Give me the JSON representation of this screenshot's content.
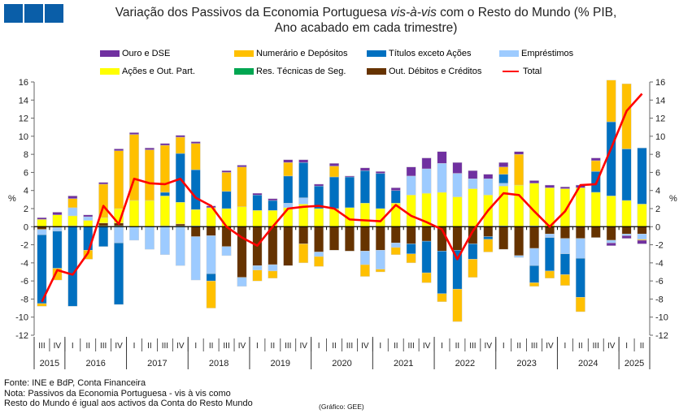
{
  "header": {
    "title_part1": "Variação dos Passivos da Economia Portuguesa ",
    "title_italic": "vis-à-vis",
    "title_part2": " com o Resto do Mundo (% PIB,",
    "title_line2": "Ano acabado em cada trimestre)"
  },
  "footer": {
    "source": "Fonte: INE e BdP, Conta Financeira",
    "note_line1": "Nota: Passivos da Economia Portuguesa - vis à vis como",
    "note_line2": "Resto do Mundo é igual aos activos da Conta do Resto Mundo",
    "credit": "(Gráfico: GEE)"
  },
  "chart_data": {
    "type": "bar",
    "stacked": true,
    "title": "Variação dos Passivos da Economia Portuguesa vis-à-vis com o Resto do Mundo (% PIB, Ano acabado em cada trimestre)",
    "ylabel": "%",
    "ylim": [
      -12,
      16
    ],
    "yticks": [
      -12,
      -10,
      -8,
      -6,
      -4,
      -2,
      0,
      2,
      4,
      6,
      8,
      10,
      12,
      14,
      16
    ],
    "legend_position": "top",
    "quarters": [
      "III",
      "IV",
      "I",
      "II",
      "III",
      "IV",
      "I",
      "II",
      "III",
      "IV",
      "I",
      "II",
      "III",
      "IV",
      "I",
      "II",
      "III",
      "IV",
      "I",
      "II",
      "III",
      "IV",
      "I",
      "II",
      "III",
      "IV",
      "I",
      "II",
      "III",
      "IV",
      "I",
      "II",
      "III",
      "IV",
      "I",
      "II",
      "III",
      "IV",
      "I",
      "II"
    ],
    "years": [
      {
        "label": "2015",
        "count": 2
      },
      {
        "label": "2016",
        "count": 4
      },
      {
        "label": "2017",
        "count": 4
      },
      {
        "label": "2018",
        "count": 4
      },
      {
        "label": "2019",
        "count": 4
      },
      {
        "label": "2020",
        "count": 4
      },
      {
        "label": "2021",
        "count": 4
      },
      {
        "label": "2022",
        "count": 4
      },
      {
        "label": "2023",
        "count": 4
      },
      {
        "label": "2024",
        "count": 4
      },
      {
        "label": "2025",
        "count": 2
      }
    ],
    "series": [
      {
        "name": "Ouro e DSE",
        "color": "#7030a0",
        "values": [
          0.2,
          0.3,
          0.3,
          0.2,
          0.2,
          0.2,
          0.2,
          0.2,
          0.2,
          0.2,
          0.2,
          0.2,
          0.2,
          0.2,
          0.2,
          0.2,
          0.3,
          0.3,
          0.2,
          0.3,
          0.1,
          0.3,
          0.2,
          0.3,
          1.0,
          1.2,
          1.3,
          1.2,
          0.9,
          0.5,
          0.5,
          0.3,
          0.3,
          0.3,
          0.2,
          0.3,
          0.3,
          -0.3,
          -0.3,
          -0.4
        ]
      },
      {
        "name": "Numerário e Depósitos",
        "color": "#ffc000",
        "values": [
          -0.3,
          -1.3,
          1.0,
          -1.0,
          3.7,
          6.4,
          7.3,
          5.6,
          5.2,
          1.8,
          2.9,
          -3.0,
          2.1,
          4.4,
          -1.2,
          -0.8,
          1.5,
          -2.1,
          -1.1,
          1.2,
          0.0,
          -1.3,
          -0.3,
          -0.8,
          -1.0,
          -1.1,
          -0.9,
          -3.6,
          -2.0,
          -1.4,
          0.8,
          3.4,
          -0.4,
          -0.8,
          -1.2,
          -1.6,
          1.2,
          4.6,
          7.2,
          -0.1
        ]
      },
      {
        "name": "Títulos exceto Ações",
        "color": "#0070c0",
        "values": [
          -7.6,
          -4.1,
          -8.8,
          -2.6,
          -2.2,
          -6.8,
          0.0,
          0.0,
          0.4,
          5.4,
          4.4,
          -0.8,
          1.9,
          0.0,
          1.7,
          1.1,
          3.0,
          3.9,
          2.5,
          3.5,
          3.4,
          3.6,
          3.9,
          1.4,
          -1.1,
          -3.5,
          -4.7,
          -4.3,
          -1.7,
          -0.3,
          1.0,
          0.0,
          -1.9,
          -3.7,
          -2.3,
          -4.3,
          2.3,
          8.2,
          5.7,
          6.2
        ]
      },
      {
        "name": "Empréstimos",
        "color": "#9dcbff",
        "values": [
          -0.6,
          -0.4,
          0.9,
          0.4,
          0.0,
          -1.8,
          -1.5,
          -2.5,
          -3.1,
          -4.3,
          -4.8,
          -4.2,
          -1.0,
          -1.0,
          -0.5,
          -0.7,
          0.5,
          0.7,
          -0.5,
          0.0,
          0.0,
          -1.5,
          -2.1,
          -0.5,
          2.1,
          2.7,
          3.2,
          2.6,
          1.1,
          1.8,
          0.3,
          -0.2,
          -1.9,
          -0.4,
          -1.7,
          -2.2,
          0.0,
          -0.3,
          -0.2,
          -0.6
        ]
      },
      {
        "name": "Ações e Out. Part.",
        "color": "#ffff00",
        "values": [
          0.8,
          1.3,
          1.1,
          0.7,
          0.6,
          1.6,
          2.9,
          2.9,
          3.3,
          2.4,
          1.8,
          2.1,
          2.0,
          2.2,
          1.8,
          1.8,
          2.1,
          2.5,
          2.0,
          2.0,
          2.1,
          2.6,
          2.0,
          2.6,
          3.5,
          3.7,
          3.8,
          3.3,
          4.2,
          3.5,
          4.4,
          4.6,
          4.7,
          4.3,
          4.2,
          4.3,
          3.8,
          3.4,
          2.9,
          2.5
        ]
      },
      {
        "name": "Res. Técnicas de Seg.",
        "color": "#00a651",
        "values": [
          0.0,
          0.0,
          0.1,
          0.0,
          0.1,
          0.1,
          0.0,
          0.0,
          0.1,
          0.1,
          0.1,
          0.0,
          0.0,
          0.0,
          0.0,
          0.0,
          0.0,
          0.0,
          0.0,
          0.0,
          0.0,
          0.0,
          0.0,
          0.0,
          0.0,
          0.0,
          0.0,
          0.0,
          0.0,
          0.0,
          0.1,
          0.0,
          0.1,
          0.0,
          0.0,
          0.0,
          0.0,
          0.0,
          0.0,
          0.0
        ]
      },
      {
        "name": "Out. Débitos e Créditos",
        "color": "#663300",
        "values": [
          -0.3,
          -0.1,
          0.0,
          0.0,
          0.3,
          0.3,
          0.0,
          0.0,
          0.0,
          0.2,
          -1.1,
          -1.0,
          -2.2,
          -5.6,
          -4.3,
          -4.2,
          -4.3,
          -1.9,
          -2.8,
          -2.6,
          -2.7,
          -2.7,
          -2.6,
          -1.8,
          -1.9,
          -1.6,
          -2.7,
          -2.6,
          -1.9,
          -1.1,
          -2.5,
          -3.2,
          -2.4,
          -0.8,
          -1.3,
          -1.3,
          -1.2,
          -1.5,
          -0.8,
          -0.8
        ]
      },
      {
        "name": "Total",
        "color": "#ff0000",
        "type": "line",
        "values": [
          -8.3,
          -4.8,
          -5.3,
          -2.9,
          2.3,
          0.3,
          5.3,
          4.8,
          4.7,
          5.3,
          3.2,
          2.3,
          0.0,
          -1.2,
          -2.1,
          0.0,
          2.0,
          2.2,
          2.3,
          2.0,
          0.8,
          0.7,
          0.6,
          2.4,
          1.2,
          0.5,
          -0.3,
          -3.6,
          -0.5,
          1.8,
          3.7,
          3.5,
          1.7,
          0.0,
          1.7,
          4.6,
          4.7,
          8.7,
          12.8,
          14.7
        ]
      }
    ]
  }
}
